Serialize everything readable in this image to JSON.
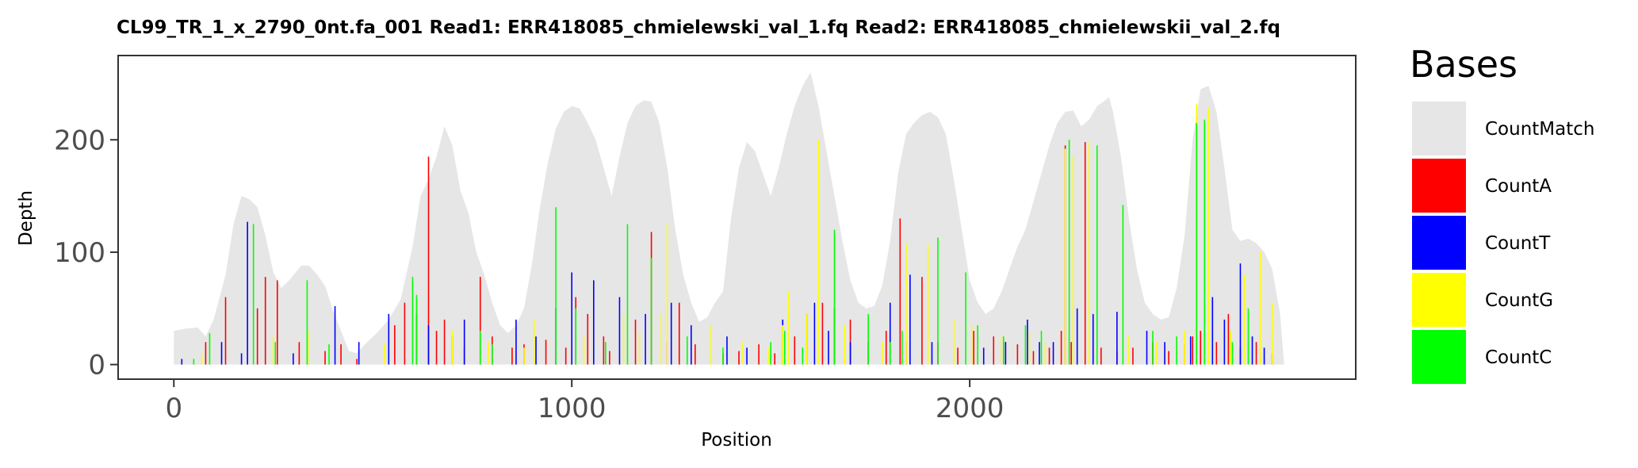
{
  "chart_data": {
    "type": "bar",
    "title": "CL99_TR_1_x_2790_0nt.fa_001   Read1: ERR418085_chmielewski_val_1.fq   Read2: ERR418085_chmielewskii_val_2.fq",
    "xlabel": "Position",
    "ylabel": "Depth",
    "xlim": [
      -140,
      2970
    ],
    "ylim": [
      -13,
      275
    ],
    "x_ticks": [
      0,
      1000,
      2000
    ],
    "x_tick_labels": [
      "0",
      "1000",
      "2000"
    ],
    "y_ticks": [
      0,
      100,
      200
    ],
    "y_tick_labels": [
      "0",
      "100",
      "200"
    ],
    "grid": false,
    "legend": {
      "title": "Bases",
      "position": "right"
    },
    "colors": {
      "CountMatch": "#e6e6e6",
      "CountA": "#ff0000",
      "CountT": "#0000ff",
      "CountG": "#ffff00",
      "CountC": "#00ff00"
    },
    "series": [
      {
        "name": "CountMatch",
        "kind": "coverage-profile",
        "points": [
          [
            0,
            30
          ],
          [
            30,
            32
          ],
          [
            60,
            33
          ],
          [
            80,
            25
          ],
          [
            100,
            40
          ],
          [
            130,
            80
          ],
          [
            150,
            125
          ],
          [
            170,
            150
          ],
          [
            190,
            147
          ],
          [
            210,
            140
          ],
          [
            230,
            115
          ],
          [
            250,
            82
          ],
          [
            270,
            68
          ],
          [
            290,
            75
          ],
          [
            320,
            88
          ],
          [
            340,
            88
          ],
          [
            360,
            80
          ],
          [
            380,
            70
          ],
          [
            400,
            48
          ],
          [
            420,
            30
          ],
          [
            440,
            12
          ],
          [
            460,
            10
          ],
          [
            480,
            18
          ],
          [
            510,
            28
          ],
          [
            540,
            40
          ],
          [
            570,
            58
          ],
          [
            600,
            105
          ],
          [
            620,
            150
          ],
          [
            640,
            165
          ],
          [
            660,
            185
          ],
          [
            680,
            212
          ],
          [
            700,
            195
          ],
          [
            720,
            155
          ],
          [
            740,
            135
          ],
          [
            760,
            100
          ],
          [
            780,
            80
          ],
          [
            800,
            55
          ],
          [
            820,
            35
          ],
          [
            840,
            28
          ],
          [
            860,
            35
          ],
          [
            880,
            50
          ],
          [
            900,
            90
          ],
          [
            920,
            140
          ],
          [
            940,
            180
          ],
          [
            960,
            210
          ],
          [
            980,
            225
          ],
          [
            1000,
            230
          ],
          [
            1020,
            228
          ],
          [
            1040,
            215
          ],
          [
            1060,
            200
          ],
          [
            1080,
            175
          ],
          [
            1100,
            150
          ],
          [
            1120,
            185
          ],
          [
            1140,
            215
          ],
          [
            1160,
            230
          ],
          [
            1180,
            235
          ],
          [
            1200,
            234
          ],
          [
            1220,
            215
          ],
          [
            1240,
            175
          ],
          [
            1260,
            120
          ],
          [
            1280,
            80
          ],
          [
            1300,
            55
          ],
          [
            1320,
            38
          ],
          [
            1340,
            42
          ],
          [
            1360,
            55
          ],
          [
            1380,
            65
          ],
          [
            1400,
            130
          ],
          [
            1420,
            175
          ],
          [
            1440,
            198
          ],
          [
            1460,
            190
          ],
          [
            1480,
            170
          ],
          [
            1500,
            150
          ],
          [
            1520,
            175
          ],
          [
            1540,
            205
          ],
          [
            1560,
            230
          ],
          [
            1580,
            248
          ],
          [
            1600,
            260
          ],
          [
            1620,
            230
          ],
          [
            1640,
            190
          ],
          [
            1660,
            150
          ],
          [
            1680,
            110
          ],
          [
            1700,
            75
          ],
          [
            1720,
            55
          ],
          [
            1740,
            50
          ],
          [
            1760,
            52
          ],
          [
            1780,
            70
          ],
          [
            1800,
            110
          ],
          [
            1820,
            170
          ],
          [
            1840,
            205
          ],
          [
            1860,
            215
          ],
          [
            1880,
            222
          ],
          [
            1900,
            225
          ],
          [
            1920,
            220
          ],
          [
            1940,
            205
          ],
          [
            1960,
            165
          ],
          [
            1980,
            120
          ],
          [
            2000,
            75
          ],
          [
            2020,
            55
          ],
          [
            2040,
            45
          ],
          [
            2060,
            50
          ],
          [
            2080,
            65
          ],
          [
            2100,
            85
          ],
          [
            2120,
            105
          ],
          [
            2140,
            120
          ],
          [
            2160,
            145
          ],
          [
            2180,
            170
          ],
          [
            2200,
            195
          ],
          [
            2220,
            215
          ],
          [
            2240,
            225
          ],
          [
            2260,
            226
          ],
          [
            2280,
            212
          ],
          [
            2300,
            218
          ],
          [
            2320,
            230
          ],
          [
            2340,
            235
          ],
          [
            2350,
            238
          ],
          [
            2360,
            225
          ],
          [
            2380,
            185
          ],
          [
            2400,
            130
          ],
          [
            2420,
            85
          ],
          [
            2440,
            55
          ],
          [
            2460,
            45
          ],
          [
            2480,
            40
          ],
          [
            2500,
            42
          ],
          [
            2520,
            68
          ],
          [
            2540,
            115
          ],
          [
            2560,
            200
          ],
          [
            2580,
            245
          ],
          [
            2600,
            248
          ],
          [
            2620,
            225
          ],
          [
            2640,
            175
          ],
          [
            2660,
            120
          ],
          [
            2680,
            110
          ],
          [
            2700,
            112
          ],
          [
            2720,
            108
          ],
          [
            2740,
            100
          ],
          [
            2760,
            85
          ],
          [
            2780,
            45
          ],
          [
            2790,
            0
          ]
        ]
      },
      {
        "name": "CountA",
        "x": [
          80,
          130,
          210,
          230,
          260,
          315,
          380,
          420,
          460,
          555,
          580,
          610,
          640,
          660,
          680,
          700,
          730,
          770,
          800,
          850,
          880,
          935,
          985,
          1010,
          1040,
          1080,
          1095,
          1160,
          1200,
          1240,
          1270,
          1310,
          1380,
          1420,
          1470,
          1510,
          1560,
          1590,
          1630,
          1660,
          1700,
          1745,
          1790,
          1825,
          1840,
          1880,
          1920,
          1970,
          2010,
          2060,
          2090,
          2120,
          2160,
          2200,
          2230,
          2240,
          2255,
          2290,
          2330,
          2370,
          2410,
          2460,
          2500,
          2540,
          2560,
          2580,
          2620,
          2650,
          2680,
          2720,
          2760
        ],
        "values": [
          20,
          60,
          50,
          78,
          75,
          20,
          12,
          18,
          5,
          35,
          55,
          45,
          185,
          30,
          40,
          25,
          15,
          78,
          25,
          15,
          18,
          22,
          15,
          60,
          45,
          25,
          12,
          40,
          118,
          20,
          55,
          18,
          10,
          12,
          18,
          10,
          25,
          45,
          55,
          50,
          40,
          20,
          30,
          130,
          20,
          78,
          20,
          15,
          30,
          25,
          20,
          18,
          12,
          15,
          30,
          195,
          20,
          198,
          15,
          12,
          15,
          20,
          12,
          18,
          25,
          30,
          20,
          45,
          15,
          20,
          10
        ]
      },
      {
        "name": "CountT",
        "x": [
          20,
          120,
          170,
          185,
          300,
          405,
          465,
          540,
          640,
          730,
          860,
          910,
          960,
          1000,
          1055,
          1120,
          1185,
          1250,
          1300,
          1390,
          1440,
          1530,
          1610,
          1645,
          1700,
          1800,
          1850,
          1905,
          2035,
          2090,
          2145,
          2175,
          2210,
          2270,
          2310,
          2370,
          2445,
          2490,
          2555,
          2610,
          2640,
          2680,
          2710,
          2740
        ],
        "values": [
          5,
          20,
          10,
          127,
          10,
          52,
          20,
          45,
          35,
          40,
          40,
          25,
          50,
          82,
          75,
          60,
          45,
          55,
          35,
          25,
          15,
          40,
          55,
          30,
          20,
          55,
          80,
          20,
          15,
          20,
          40,
          20,
          20,
          50,
          45,
          47,
          30,
          20,
          25,
          60,
          40,
          90,
          25,
          15
        ]
      },
      {
        "name": "CountG",
        "x": [
          70,
          250,
          340,
          530,
          700,
          790,
          880,
          905,
          1030,
          1130,
          1170,
          1225,
          1240,
          1350,
          1430,
          1495,
          1530,
          1545,
          1590,
          1620,
          1685,
          1780,
          1840,
          1895,
          1960,
          2005,
          2080,
          2150,
          2190,
          2240,
          2260,
          2300,
          2400,
          2470,
          2540,
          2570,
          2600,
          2655,
          2690,
          2730,
          2760
        ],
        "values": [
          10,
          25,
          30,
          18,
          30,
          20,
          15,
          40,
          25,
          45,
          28,
          45,
          125,
          35,
          20,
          15,
          35,
          65,
          45,
          200,
          35,
          20,
          108,
          107,
          40,
          35,
          25,
          30,
          20,
          192,
          185,
          198,
          25,
          20,
          30,
          232,
          228,
          30,
          80,
          100,
          55
        ]
      },
      {
        "name": "CountC",
        "x": [
          50,
          90,
          200,
          255,
          335,
          390,
          600,
          610,
          770,
          800,
          960,
          1010,
          1085,
          1140,
          1200,
          1290,
          1380,
          1500,
          1535,
          1580,
          1660,
          1745,
          1800,
          1830,
          1920,
          1990,
          2020,
          2085,
          2140,
          2180,
          2250,
          2320,
          2385,
          2460,
          2520,
          2570,
          2590,
          2660,
          2700
        ],
        "values": [
          5,
          28,
          125,
          20,
          75,
          18,
          78,
          62,
          30,
          18,
          140,
          50,
          20,
          125,
          95,
          25,
          15,
          20,
          30,
          15,
          120,
          45,
          20,
          30,
          113,
          82,
          35,
          25,
          35,
          30,
          200,
          195,
          142,
          30,
          25,
          215,
          218,
          20,
          50
        ]
      }
    ]
  }
}
